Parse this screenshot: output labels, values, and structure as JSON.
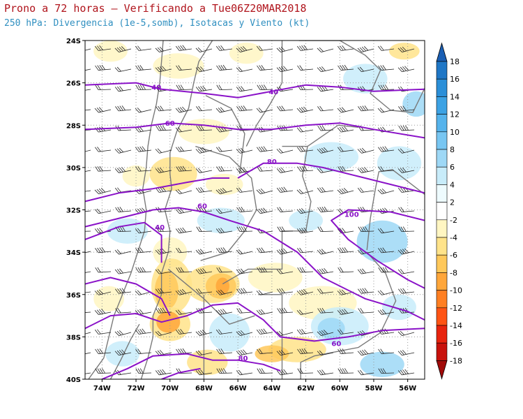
{
  "header": {
    "title": "Prono a 72 horas — Verificando a Tue06Z20MAR2018",
    "subtitle": "250 hPa: Divergencia (1e-5,somb), Isotacas y Viento (kt)"
  },
  "map": {
    "lat_labels": [
      "24S",
      "26S",
      "28S",
      "30S",
      "32S",
      "34S",
      "36S",
      "38S",
      "40S"
    ],
    "lon_labels": [
      "74W",
      "72W",
      "70W",
      "68W",
      "66W",
      "64W",
      "62W",
      "60W",
      "58W",
      "56W"
    ],
    "isotach_labels": [
      {
        "text": "40",
        "lon": -70.8,
        "lat": -26.2
      },
      {
        "text": "40",
        "lon": -63.9,
        "lat": -26.4
      },
      {
        "text": "60",
        "lon": -70.0,
        "lat": -27.9
      },
      {
        "text": "80",
        "lon": -64.0,
        "lat": -29.7
      },
      {
        "text": "60",
        "lon": -68.1,
        "lat": -31.8
      },
      {
        "text": "40",
        "lon": -70.6,
        "lat": -32.8
      },
      {
        "text": "100",
        "lon": -59.3,
        "lat": -32.2
      },
      {
        "text": "80",
        "lon": -65.7,
        "lat": -39.0
      },
      {
        "text": "60",
        "lon": -60.2,
        "lat": -38.3
      }
    ]
  },
  "colorbar": {
    "labels": [
      "18",
      "16",
      "14",
      "12",
      "10",
      "8",
      "6",
      "4",
      "2",
      "-2",
      "-4",
      "-6",
      "-8",
      "-10",
      "-12",
      "-14",
      "-16",
      "-18"
    ],
    "colors": [
      "#1a5fb4",
      "#1f77c6",
      "#2b8fd8",
      "#3ca2e4",
      "#55b3ec",
      "#78c6f2",
      "#9ed8f6",
      "#c8ecfa",
      "#eefbfe",
      "#ffffff",
      "#fff6c2",
      "#ffe38a",
      "#ffc85a",
      "#ffa63a",
      "#ff7f22",
      "#ff5414",
      "#e8240e",
      "#c8120c",
      "#a10a08"
    ]
  }
}
